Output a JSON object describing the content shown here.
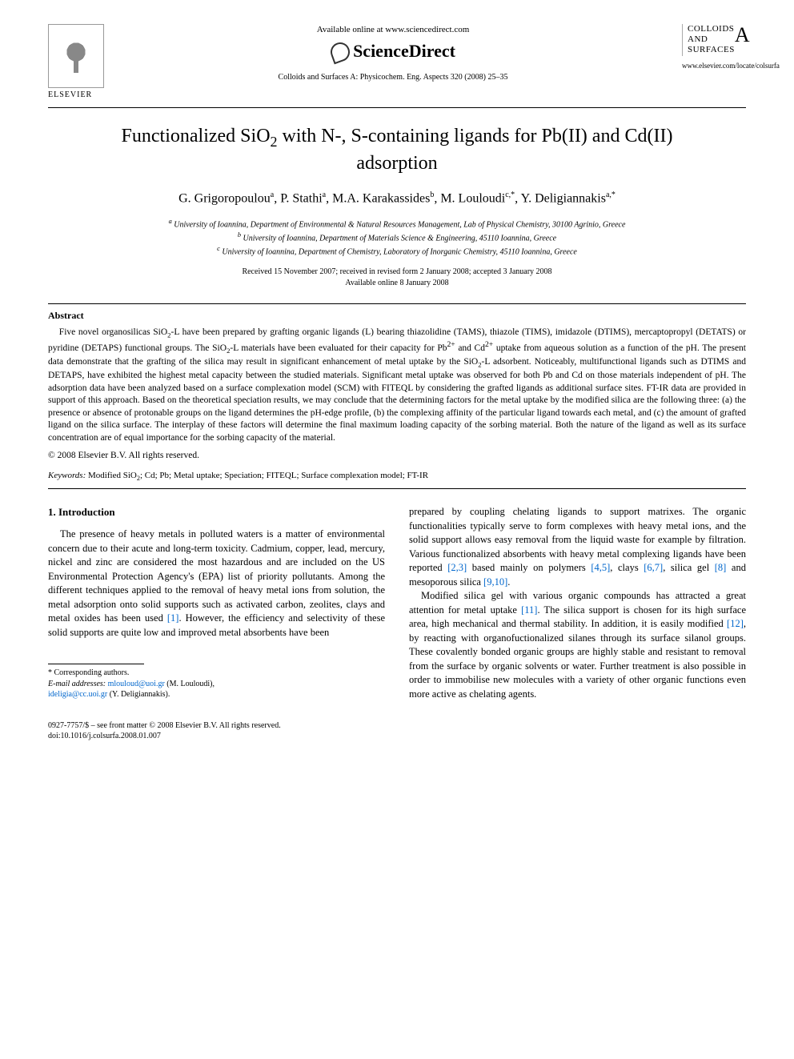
{
  "header": {
    "publisher_name": "ELSEVIER",
    "available_text": "Available online at www.sciencedirect.com",
    "platform_name": "ScienceDirect",
    "journal_reference": "Colloids and Surfaces A: Physicochem. Eng. Aspects 320 (2008) 25–35",
    "journal_cover_line1": "COLLOIDS",
    "journal_cover_line2": "AND",
    "journal_cover_line3": "SURFACES",
    "journal_cover_letter": "A",
    "journal_url": "www.elsevier.com/locate/colsurfa"
  },
  "article": {
    "title_html": "Functionalized SiO<sub>2</sub> with N-, S-containing ligands for Pb(II) and Cd(II) adsorption",
    "authors_html": "G. Grigoropoulou<sup>a</sup>, P. Stathi<sup>a</sup>, M.A. Karakassides<sup>b</sup>, M. Louloudi<sup>c,*</sup>, Y. Deligiannakis<sup>a,*</sup>",
    "affiliations": {
      "a": "University of Ioannina, Department of Environmental & Natural Resources Management, Lab of Physical Chemistry, 30100 Agrinio, Greece",
      "b": "University of Ioannina, Department of Materials Science & Engineering, 45110 Ioannina, Greece",
      "c": "University of Ioannina, Department of Chemistry, Laboratory of Inorganic Chemistry, 45110 Ioannina, Greece"
    },
    "dates_line1": "Received 15 November 2007; received in revised form 2 January 2008; accepted 3 January 2008",
    "dates_line2": "Available online 8 January 2008"
  },
  "abstract": {
    "heading": "Abstract",
    "body_html": "Five novel organosilicas SiO<sub>2</sub>-L have been prepared by grafting organic ligands (L) bearing thiazolidine (TAMS), thiazole (TIMS), imidazole (DTIMS), mercaptopropyl (DETATS) or pyridine (DETAPS) functional groups. The SiO<sub>2</sub>-L materials have been evaluated for their capacity for Pb<sup>2+</sup> and Cd<sup>2+</sup> uptake from aqueous solution as a function of the pH. The present data demonstrate that the grafting of the silica may result in significant enhancement of metal uptake by the SiO<sub>2</sub>-L adsorbent. Noticeably, multifunctional ligands such as DTIMS and DETAPS, have exhibited the highest metal capacity between the studied materials. Significant metal uptake was observed for both Pb and Cd on those materials independent of pH. The adsorption data have been analyzed based on a surface complexation model (SCM) with FITEQL by considering the grafted ligands as additional surface sites. FT-IR data are provided in support of this approach. Based on the theoretical speciation results, we may conclude that the determining factors for the metal uptake by the modified silica are the following three: (a) the presence or absence of protonable groups on the ligand determines the pH-edge profile, (b) the complexing affinity of the particular ligand towards each metal, and (c) the amount of grafted ligand on the silica surface. The interplay of these factors will determine the final maximum loading capacity of the sorbing material. Both the nature of the ligand as well as its surface concentration are of equal importance for the sorbing capacity of the material.",
    "copyright": "© 2008 Elsevier B.V. All rights reserved."
  },
  "keywords": {
    "label": "Keywords:",
    "text_html": "Modified SiO<sub>2</sub>; Cd; Pb; Metal uptake; Speciation; FITEQL; Surface complexation model; FT-IR"
  },
  "section1": {
    "heading": "1. Introduction",
    "col1_p1_html": "The presence of heavy metals in polluted waters is a matter of environmental concern due to their acute and long-term toxicity. Cadmium, copper, lead, mercury, nickel and zinc are considered the most hazardous and are included on the US Environmental Protection Agency's (EPA) list of priority pollutants. Among the different techniques applied to the removal of heavy metal ions from solution, the metal adsorption onto solid supports such as activated carbon, zeolites, clays and metal oxides has been used <span class=\"cite\">[1]</span>. However, the efficiency and selectivity of these solid supports are quite low and improved metal absorbents have been",
    "col2_p1_html": "prepared by coupling chelating ligands to support matrixes. The organic functionalities typically serve to form complexes with heavy metal ions, and the solid support allows easy removal from the liquid waste for example by filtration. Various functionalized absorbents with heavy metal complexing ligands have been reported <span class=\"cite\">[2,3]</span> based mainly on polymers <span class=\"cite\">[4,5]</span>, clays <span class=\"cite\">[6,7]</span>, silica gel <span class=\"cite\">[8]</span> and mesoporous silica <span class=\"cite\">[9,10]</span>.",
    "col2_p2_html": "Modified silica gel with various organic compounds has attracted a great attention for metal uptake <span class=\"cite\">[11]</span>. The silica support is chosen for its high surface area, high mechanical and thermal stability. In addition, it is easily modified <span class=\"cite\">[12]</span>, by reacting with organofuctionalized silanes through its surface silanol groups. These covalently bonded organic groups are highly stable and resistant to removal from the surface by organic solvents or water. Further treatment is also possible in order to immobilise new molecules with a variety of other organic functions even more active as chelating agents."
  },
  "footnotes": {
    "corresponding": "* Corresponding authors.",
    "email_label": "E-mail addresses:",
    "email1": "mlouloud@uoi.gr",
    "email1_name": "(M. Louloudi),",
    "email2": "ideligia@cc.uoi.gr",
    "email2_name": "(Y. Deligiannakis)."
  },
  "footer": {
    "issn_line": "0927-7757/$ – see front matter © 2008 Elsevier B.V. All rights reserved.",
    "doi_line": "doi:10.1016/j.colsurfa.2008.01.007"
  },
  "colors": {
    "link": "#0066cc",
    "text": "#000000",
    "rule": "#000000"
  }
}
